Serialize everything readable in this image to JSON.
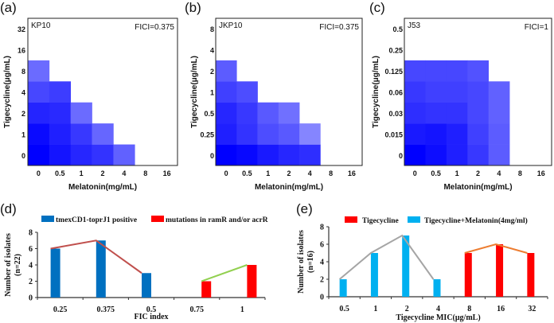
{
  "chart_data": [
    {
      "type": "heatmap",
      "panel_label": "(a)",
      "strain": "KP10",
      "fici": "FICI=0.375",
      "xlabel": "Melatonin(mg/mL)",
      "ylabel": "Tigecycline(μg/mL)",
      "x_ticks": [
        "0",
        "0.5",
        "1",
        "2",
        "4",
        "8",
        "16"
      ],
      "y_ticks": [
        "0",
        "1",
        "2",
        "4",
        "8",
        "16",
        "32"
      ],
      "growth_rows_bottom_to_top": [
        [
          1.0,
          0.92,
          0.85,
          0.8,
          0.62
        ],
        [
          0.96,
          0.88,
          0.78,
          0.6
        ],
        [
          0.86,
          0.84,
          0.58
        ],
        [
          0.72,
          0.76
        ],
        [
          0.58
        ]
      ]
    },
    {
      "type": "heatmap",
      "panel_label": "(b)",
      "strain": "JKP10",
      "fici": "FICI=0.375",
      "xlabel": "Melatonin(mg/mL)",
      "ylabel": "Tigecycline(μg/mL)",
      "x_ticks": [
        "0",
        "0.5",
        "1",
        "2",
        "4",
        "8",
        "16"
      ],
      "y_ticks": [
        "0",
        "0.25",
        "0.5",
        "1",
        "2",
        "4",
        "8"
      ],
      "growth_rows_bottom_to_top": [
        [
          1.0,
          0.97,
          0.9,
          0.85,
          0.82
        ],
        [
          0.88,
          0.8,
          0.7,
          0.65,
          0.48
        ],
        [
          0.85,
          0.78,
          0.65,
          0.56
        ],
        [
          0.75,
          0.7
        ],
        [
          0.64
        ]
      ]
    },
    {
      "type": "heatmap",
      "panel_label": "(c)",
      "strain": "J53",
      "fici": "FICI=1",
      "xlabel": "Melatonin(mg/mL)",
      "ylabel": "Tigecycline(μg/mL)",
      "x_ticks": [
        "0",
        "0.5",
        "1",
        "2",
        "4",
        "8",
        "16"
      ],
      "y_ticks": [
        "0",
        "0.015",
        "0.03",
        "0.06",
        "0.125",
        "0.25",
        "0.5"
      ],
      "growth_rows_bottom_to_top": [
        [
          1.0,
          0.95,
          0.88,
          0.78,
          0.64
        ],
        [
          0.9,
          0.92,
          0.88,
          0.75,
          0.64
        ],
        [
          0.82,
          0.8,
          0.8,
          0.72,
          0.62
        ],
        [
          0.78,
          0.75,
          0.75,
          0.72,
          0.62
        ],
        [
          0.72,
          0.72,
          0.72,
          0.68
        ]
      ]
    },
    {
      "type": "bar",
      "panel_label": "(d)",
      "categories": [
        "0.25",
        "0.375",
        "0.5",
        "0.75",
        "1"
      ],
      "xlabel": "FIC index",
      "ylabel": "Number of isolates",
      "ylabel2": "(n=22)",
      "ylim": [
        0,
        8
      ],
      "y_ticks": [
        "0",
        "2",
        "4",
        "6",
        "8"
      ],
      "legend_position": "top",
      "series": [
        {
          "name": "tmexCD1-toprJ1 positive",
          "color": "#0070c0",
          "line_color": "#c0504d",
          "values": [
            6,
            7,
            3,
            null,
            null
          ]
        },
        {
          "name": "mutations in ramR and/or  acrR",
          "color": "#ff0000",
          "line_color": "#92d050",
          "values": [
            null,
            null,
            null,
            2,
            4
          ]
        }
      ]
    },
    {
      "type": "bar",
      "panel_label": "(e)",
      "categories": [
        "0.5",
        "1",
        "2",
        "4",
        "8",
        "16",
        "32"
      ],
      "xlabel": "Tigecycline MIC(μg/mL)",
      "ylabel": "Number of isolates",
      "ylabel2": "(n=16)",
      "ylim": [
        0,
        8
      ],
      "y_ticks": [
        "0",
        "2",
        "4",
        "6",
        "8"
      ],
      "legend_position": "top",
      "series": [
        {
          "name": "Tigecycline",
          "color": "#ff0000",
          "line_color": "#ed7d31",
          "values": [
            null,
            null,
            null,
            null,
            5,
            6,
            5
          ]
        },
        {
          "name": "Tigecycline+Melatonin(4mg/ml)",
          "color": "#00b0f0",
          "line_color": "#a5a5a5",
          "values": [
            2,
            5,
            7,
            2,
            null,
            null,
            null
          ]
        }
      ]
    }
  ]
}
